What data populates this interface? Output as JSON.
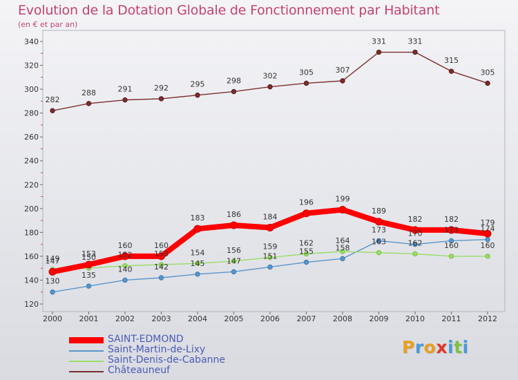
{
  "header": {
    "title": "Evolution de la Dotation Globale de Fonctionnement par Habitant",
    "subtitle": "(en € et par an)"
  },
  "brand": {
    "letters": [
      "P",
      "r",
      "o",
      "x",
      "i",
      "t",
      "i"
    ],
    "colors": [
      "#e8a020",
      "#4a9ad8",
      "#e8a020",
      "#e2372a",
      "#4a9ad8",
      "#7cc242",
      "#4a9ad8"
    ]
  },
  "chart_data": {
    "type": "line",
    "title": "Evolution de la Dotation Globale de Fonctionnement par Habitant",
    "subtitle": "(en € et par an)",
    "xlabel": "",
    "ylabel": "",
    "x": [
      "2000",
      "2001",
      "2002",
      "2003",
      "2004",
      "2005",
      "2006",
      "2007",
      "2008",
      "2009",
      "2010",
      "2011",
      "2012"
    ],
    "ylim": [
      120,
      340
    ],
    "yticks": [
      120,
      140,
      160,
      180,
      200,
      220,
      240,
      260,
      280,
      300,
      320,
      340
    ],
    "grid": false,
    "legend": "bottom-left",
    "series": [
      {
        "name": "SAINT-EDMOND",
        "color": "#ff0000",
        "values": [
          147,
          153,
          160,
          160,
          183,
          186,
          184,
          196,
          199,
          189,
          182,
          182,
          179
        ]
      },
      {
        "name": "Saint-Martin-de-Lixy",
        "color": "#5b95c9",
        "values": [
          130,
          135,
          140,
          142,
          145,
          147,
          151,
          155,
          158,
          173,
          170,
          173,
          174
        ]
      },
      {
        "name": "Saint-Denis-de-Cabanne",
        "color": "#99dd66",
        "values": [
          149,
          150,
          152,
          153,
          154,
          156,
          159,
          162,
          164,
          163,
          162,
          160,
          160
        ]
      },
      {
        "name": "Châteauneuf",
        "color": "#7a2e2e",
        "values": [
          282,
          288,
          291,
          292,
          295,
          298,
          302,
          305,
          307,
          331,
          331,
          315,
          305
        ]
      }
    ]
  }
}
